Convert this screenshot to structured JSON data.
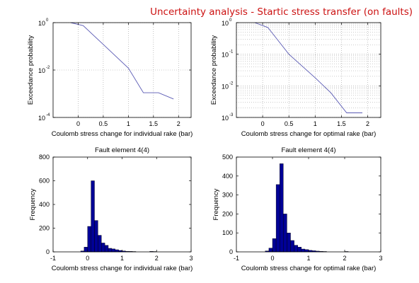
{
  "figure": {
    "title": "Uncertainty analysis - Startic stress transfer (on faults)",
    "title_color": "#cc1111",
    "line_color": "#5a5ab4",
    "bar_color": "#000096",
    "grid_color": "#9a9a9a"
  },
  "chart_data": [
    {
      "type": "line",
      "title": "",
      "xlabel": "Coulomb stress change for individual rake (bar)",
      "ylabel": "Exceedance probability",
      "yscale": "log",
      "xlim": [
        -0.5,
        2.25
      ],
      "ylim": [
        0.0001,
        1
      ],
      "xticks": [
        "0",
        "0.5",
        "1",
        "1.5",
        "2"
      ],
      "yticks": [
        {
          "base": "10",
          "exp": "0"
        },
        {
          "base": "10",
          "exp": "-2"
        },
        {
          "base": "10",
          "exp": "-4"
        }
      ],
      "grid": true,
      "minor_grid": false,
      "x": [
        -0.15,
        0.1,
        0.5,
        1.0,
        1.3,
        1.6,
        1.9
      ],
      "y": [
        1.0,
        0.75,
        0.12,
        0.012,
        0.0011,
        0.0011,
        0.0006
      ]
    },
    {
      "type": "line",
      "title": "",
      "xlabel": "Coulomb stress change for optimal rake (bar)",
      "ylabel": "Exceedance probability",
      "yscale": "log",
      "xlim": [
        -0.5,
        2.25
      ],
      "ylim": [
        0.001,
        1
      ],
      "xticks": [
        "0",
        "0.5",
        "1",
        "1.5",
        "2"
      ],
      "yticks": [
        {
          "base": "10",
          "exp": "0"
        },
        {
          "base": "10",
          "exp": "-1"
        },
        {
          "base": "10",
          "exp": "-2"
        },
        {
          "base": "10",
          "exp": "-3"
        }
      ],
      "grid": true,
      "minor_grid": true,
      "x": [
        -0.15,
        0.1,
        0.5,
        1.0,
        1.3,
        1.6,
        1.9
      ],
      "y": [
        1.0,
        0.7,
        0.1,
        0.018,
        0.006,
        0.0014,
        0.0014
      ]
    },
    {
      "type": "bar",
      "title": "Fault element 4(4)",
      "xlabel": "Coulomb stress change for individual rake (bar)",
      "ylabel": "Frequency",
      "xlim": [
        -1,
        3
      ],
      "ylim": [
        0,
        800
      ],
      "xticks": [
        "-1",
        "0",
        "1",
        "2",
        "3"
      ],
      "yticks": [
        "0",
        "200",
        "400",
        "600",
        "800"
      ],
      "grid": false,
      "bin_width": 0.1,
      "bin_starts": [
        -0.2,
        -0.1,
        0.0,
        0.1,
        0.2,
        0.3,
        0.4,
        0.5,
        0.6,
        0.7,
        0.8,
        0.9,
        1.0,
        1.1,
        1.2,
        1.3,
        1.8,
        1.9
      ],
      "values": [
        8,
        40,
        215,
        600,
        265,
        140,
        75,
        55,
        30,
        25,
        18,
        12,
        8,
        5,
        4,
        3,
        4,
        3
      ]
    },
    {
      "type": "bar",
      "title": "Fault element 4(4)",
      "xlabel": "Coulomb stress change for optimal rake (bar)",
      "ylabel": "Frequency",
      "xlim": [
        -1,
        3
      ],
      "ylim": [
        0,
        500
      ],
      "xticks": [
        "-1",
        "0",
        "1",
        "2",
        "3"
      ],
      "yticks": [
        "0",
        "100",
        "200",
        "300",
        "400",
        "500"
      ],
      "grid": false,
      "bin_width": 0.1,
      "bin_starts": [
        -0.2,
        -0.1,
        0.0,
        0.1,
        0.2,
        0.3,
        0.4,
        0.5,
        0.6,
        0.7,
        0.8,
        0.9,
        1.0,
        1.1,
        1.2,
        1.3,
        1.4,
        2.0
      ],
      "values": [
        5,
        20,
        70,
        355,
        465,
        200,
        100,
        60,
        35,
        25,
        15,
        12,
        8,
        6,
        4,
        3,
        2,
        2
      ]
    }
  ]
}
